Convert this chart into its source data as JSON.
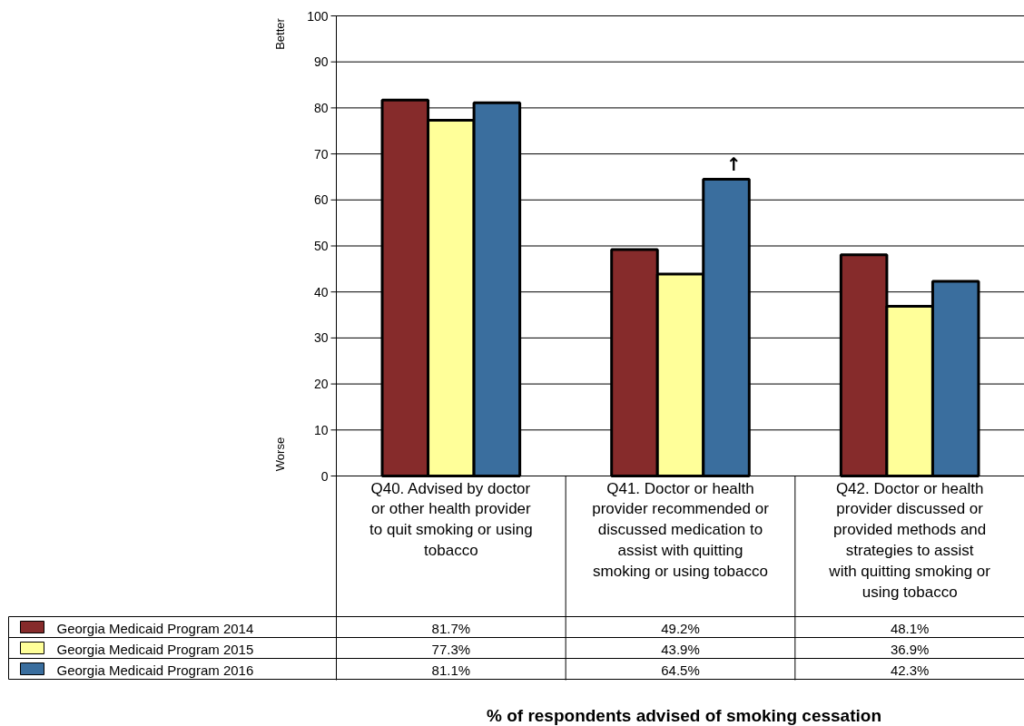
{
  "chart_data": {
    "type": "bar",
    "title": "% of respondents advised of smoking cessation",
    "categories": [
      "Q40. Advised by doctor or other health provider to quit smoking or using tobacco",
      "Q41. Doctor or health provider recommended or discussed medication to assist with quitting smoking or using tobacco",
      "Q42. Doctor or health provider discussed or provided methods and strategies to assist with quitting smoking or using tobacco"
    ],
    "series": [
      {
        "name": "Georgia Medicaid Program 2014",
        "color": "#862b2b",
        "values": [
          81.7,
          49.2,
          48.1
        ],
        "value_labels": [
          "81.7%",
          "49.2%",
          "48.1%"
        ]
      },
      {
        "name": "Georgia Medicaid Program 2015",
        "color": "#ffff99",
        "values": [
          77.3,
          43.9,
          36.9
        ],
        "value_labels": [
          "77.3%",
          "43.9%",
          "36.9%"
        ]
      },
      {
        "name": "Georgia Medicaid Program 2016",
        "color": "#3a6e9e",
        "values": [
          81.1,
          64.5,
          42.3
        ],
        "value_labels": [
          "81.1%",
          "64.5%",
          "42.3%"
        ]
      }
    ],
    "ylim": [
      0,
      100
    ],
    "yticks": [
      0,
      10,
      20,
      30,
      40,
      50,
      60,
      70,
      80,
      90,
      100
    ],
    "grid": "y",
    "legend": "bottom left",
    "annotations": [
      "Better",
      "Worse",
      "↑"
    ]
  }
}
